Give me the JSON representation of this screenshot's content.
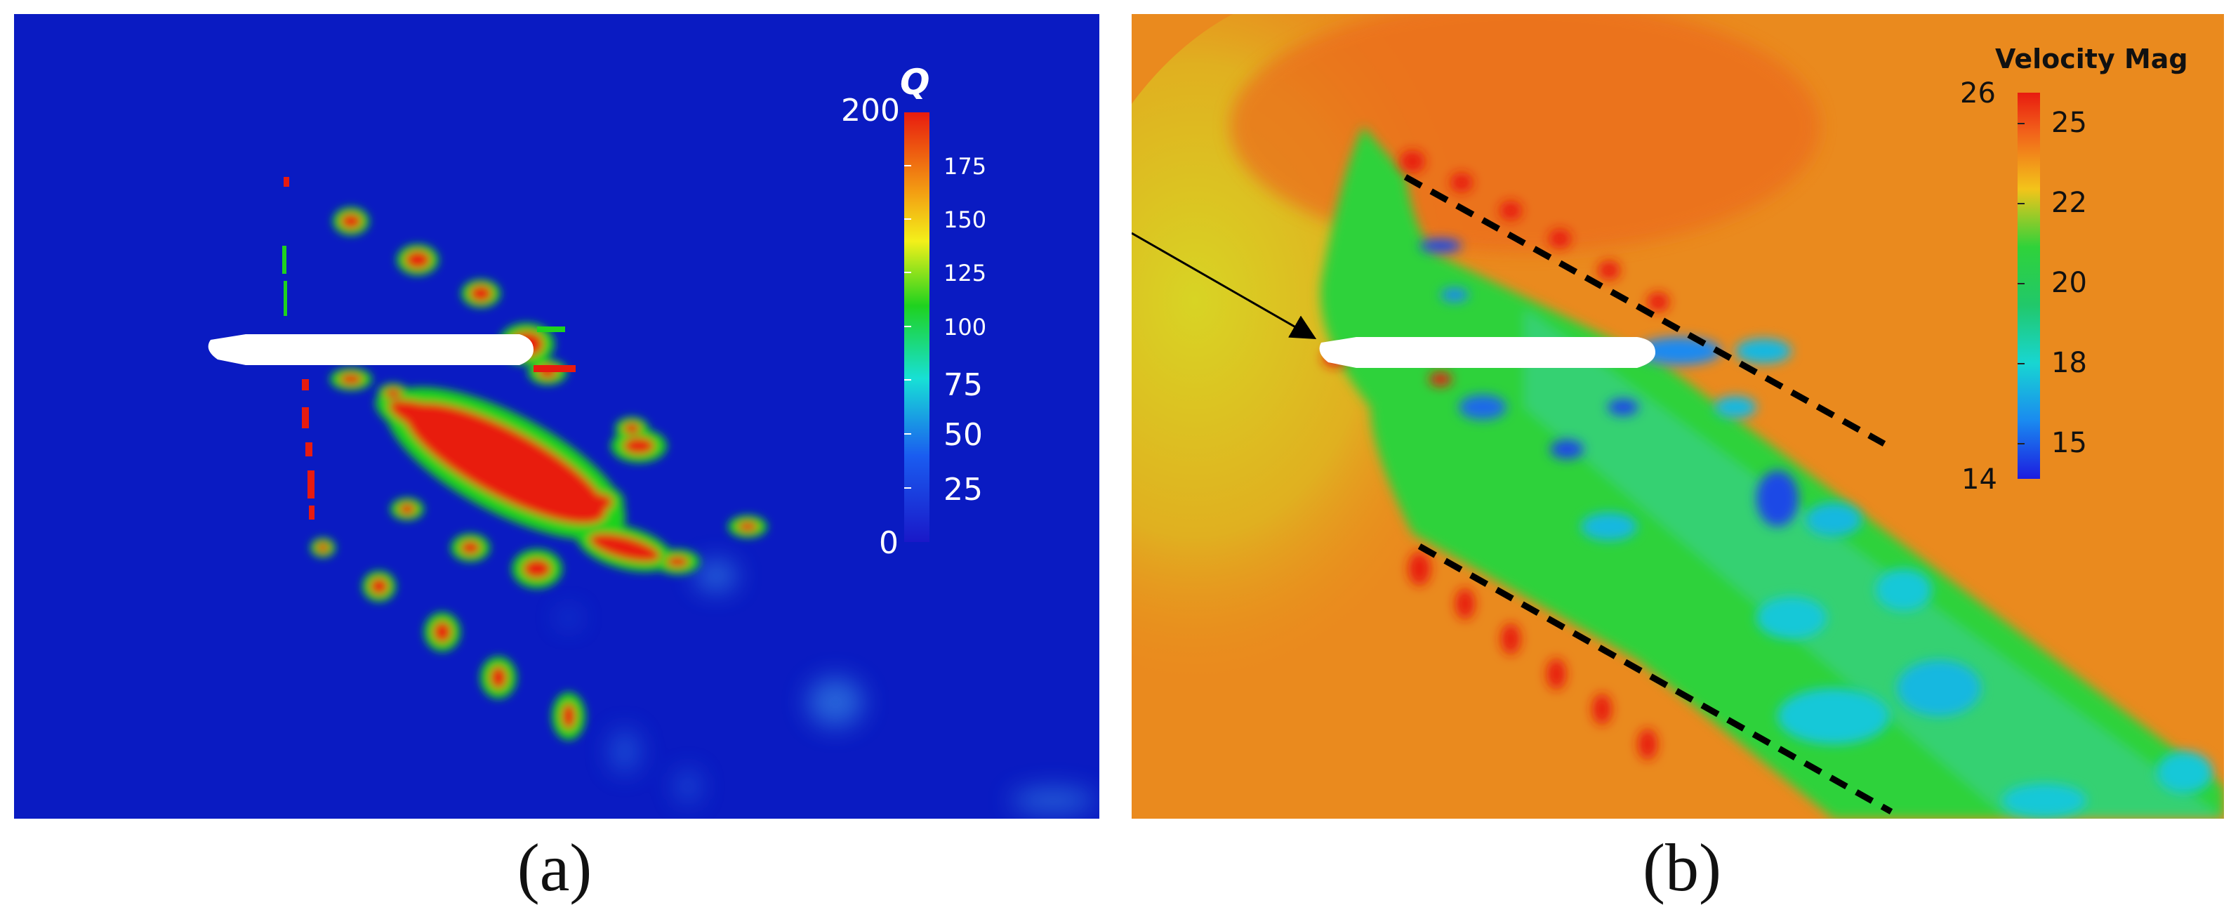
{
  "panel_a": {
    "colorbar": {
      "title": "Q",
      "max_label": "200",
      "min_label": "0",
      "ticks": [
        "175",
        "150",
        "125",
        "100",
        "75",
        "50",
        "25"
      ]
    },
    "caption": "(a)"
  },
  "panel_b": {
    "colorbar": {
      "title": "Velocity Mag",
      "max_label": "26",
      "min_label": "14",
      "ticks": [
        "25",
        "22",
        "20",
        "18",
        "15"
      ]
    },
    "caption": "(b)"
  },
  "colors": {
    "q_background": "#0a1bc2",
    "q_high": "#e81b0f",
    "q_mid": "#1fd21f",
    "velocity_background": "#ea8a1e",
    "velocity_wake": "#2fd23a",
    "velocity_low": "#1c3fe0",
    "hull": "#ffffff"
  }
}
